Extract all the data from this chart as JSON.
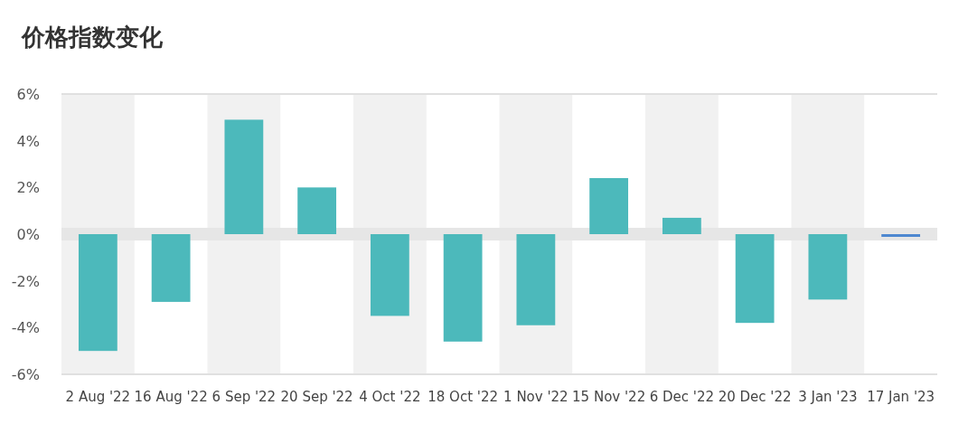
{
  "chart_data": {
    "type": "bar",
    "title": "价格指数变化",
    "categories": [
      "2 Aug '22",
      "16 Aug '22",
      "6 Sep '22",
      "20 Sep '22",
      "4 Oct '22",
      "18 Oct '22",
      "1 Nov '22",
      "15 Nov '22",
      "6 Dec '22",
      "20 Dec '22",
      "3 Jan '23",
      "17 Jan '23"
    ],
    "values": [
      -5.0,
      -2.9,
      4.9,
      2.0,
      -3.5,
      -4.6,
      -3.9,
      2.4,
      0.7,
      -3.8,
      -2.8,
      -0.1
    ],
    "colors": [
      "#4cb9bb",
      "#4cb9bb",
      "#4cb9bb",
      "#4cb9bb",
      "#4cb9bb",
      "#4cb9bb",
      "#4cb9bb",
      "#4cb9bb",
      "#4cb9bb",
      "#4cb9bb",
      "#4cb9bb",
      "#4e88d0"
    ],
    "ylim": [
      -6,
      6
    ],
    "yticks": [
      {
        "value": 6,
        "label": "6%"
      },
      {
        "value": 4,
        "label": "4%"
      },
      {
        "value": 2,
        "label": "2%"
      },
      {
        "value": 0,
        "label": "0%"
      },
      {
        "value": -2,
        "label": "-2%"
      },
      {
        "value": -4,
        "label": "-4%"
      },
      {
        "value": -6,
        "label": "-6%"
      }
    ],
    "ref_lines": [
      {
        "axis": "y",
        "value": 0,
        "color": "#e6e6e6"
      }
    ]
  }
}
